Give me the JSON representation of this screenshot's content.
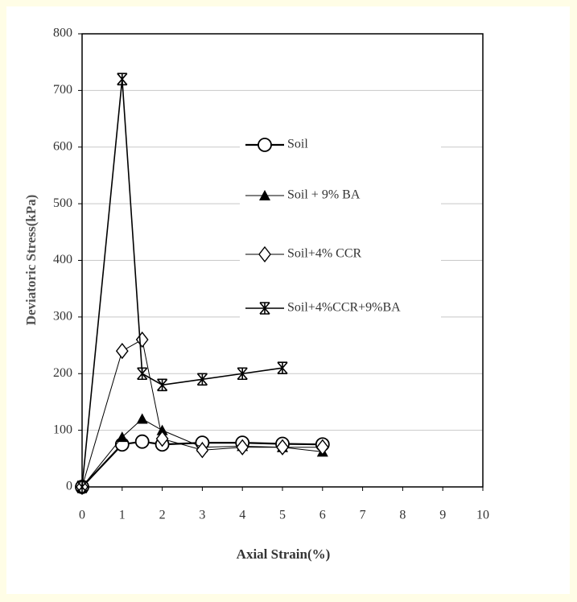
{
  "chart_data": {
    "type": "line",
    "x_label": "Axial Strain(%)",
    "y_label": "Deviatoric  Stress(kPa)",
    "xlim": [
      0,
      10
    ],
    "xticks": [
      0,
      1,
      2,
      3,
      4,
      5,
      6,
      7,
      8,
      9,
      10
    ],
    "ylim": [
      0,
      800
    ],
    "yticks": [
      0,
      100,
      200,
      300,
      400,
      500,
      600,
      700,
      800
    ],
    "grid": true,
    "legend": "center",
    "series": [
      {
        "name": "Soil",
        "color": "#000000",
        "marker": "circle",
        "x": [
          0,
          1,
          1.5,
          2,
          3,
          4,
          5,
          6
        ],
        "values": [
          0,
          75,
          80,
          75,
          78,
          78,
          76,
          75
        ]
      },
      {
        "name": "Soil + 9% BA",
        "color": "#000000",
        "marker": "triangle",
        "x": [
          0,
          1,
          1.5,
          2,
          3,
          4,
          5,
          6
        ],
        "values": [
          0,
          88,
          120,
          100,
          70,
          72,
          70,
          62
        ]
      },
      {
        "name": "Soil+4% CCR",
        "color": "#000000",
        "marker": "diamond",
        "x": [
          0,
          1,
          1.5,
          2,
          3,
          4,
          5,
          6
        ],
        "values": [
          0,
          240,
          260,
          85,
          65,
          70,
          70,
          70
        ]
      },
      {
        "name": "Soil+4%CCR+9%BA",
        "color": "#000000",
        "marker": "star",
        "x": [
          0,
          1,
          1.5,
          2,
          3,
          4,
          5
        ],
        "values": [
          0,
          720,
          200,
          180,
          190,
          200,
          210
        ]
      }
    ]
  }
}
